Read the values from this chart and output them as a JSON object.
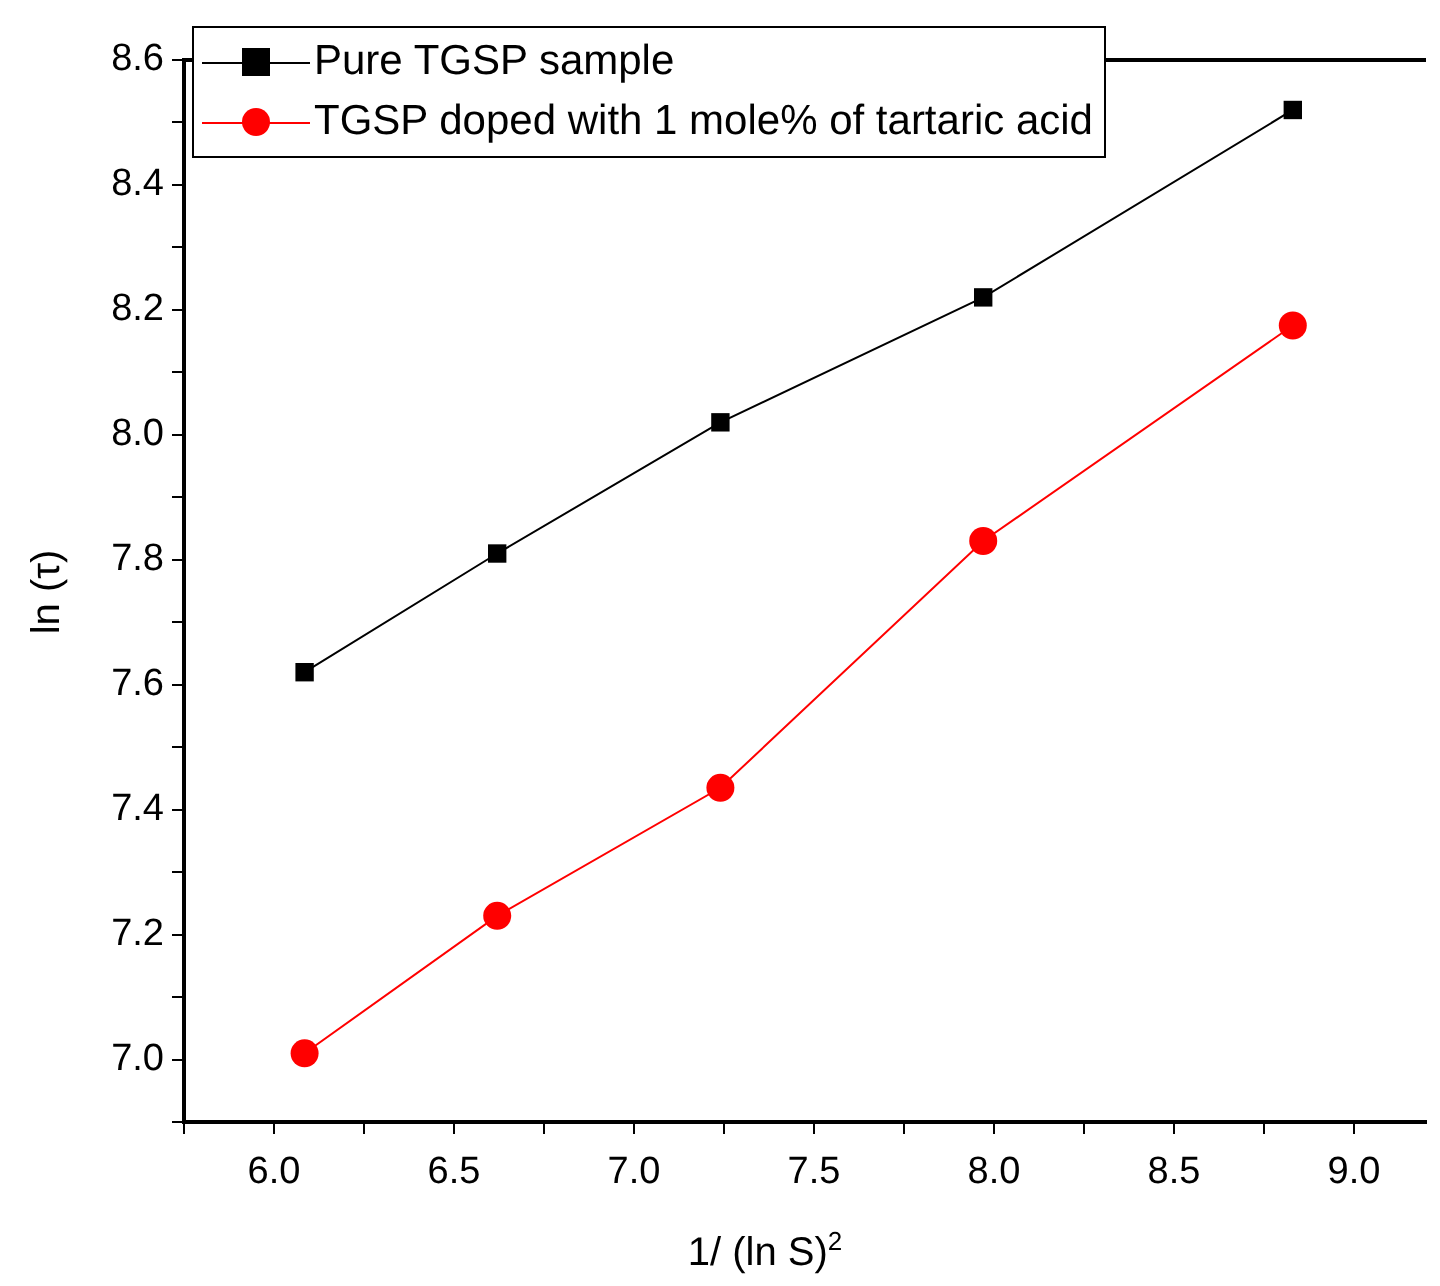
{
  "chart_data": {
    "type": "line",
    "xlabel": "1/ (ln S)$^{2}$",
    "ylabel": "ln (τ)",
    "xlim": [
      5.75,
      9.2
    ],
    "xticks": [
      {
        "value": 5.75,
        "label": null
      },
      {
        "value": 6,
        "label": "6.0"
      },
      {
        "value": 6.25,
        "label": null
      },
      {
        "value": 6.5,
        "label": "6.5"
      },
      {
        "value": 6.75,
        "label": null
      },
      {
        "value": 7,
        "label": "7.0"
      },
      {
        "value": 7.25,
        "label": null
      },
      {
        "value": 7.5,
        "label": "7.5"
      },
      {
        "value": 7.75,
        "label": null
      },
      {
        "value": 8,
        "label": "8.0"
      },
      {
        "value": 8.25,
        "label": null
      },
      {
        "value": 8.5,
        "label": "8.5"
      },
      {
        "value": 8.75,
        "label": null
      },
      {
        "value": 9,
        "label": "9.0"
      }
    ],
    "ylim": [
      6.9,
      8.6
    ],
    "yticks": [
      {
        "value": 6.9,
        "label": null
      },
      {
        "value": 7,
        "label": "7.0"
      },
      {
        "value": 7.1,
        "label": null
      },
      {
        "value": 7.2,
        "label": "7.2"
      },
      {
        "value": 7.3,
        "label": null
      },
      {
        "value": 7.4,
        "label": "7.4"
      },
      {
        "value": 7.5,
        "label": null
      },
      {
        "value": 7.6,
        "label": "7.6"
      },
      {
        "value": 7.7,
        "label": null
      },
      {
        "value": 7.8,
        "label": "7.8"
      },
      {
        "value": 7.9,
        "label": null
      },
      {
        "value": 8,
        "label": "8.0"
      },
      {
        "value": 8.1,
        "label": null
      },
      {
        "value": 8.2,
        "label": "8.2"
      },
      {
        "value": 8.3,
        "label": null
      },
      {
        "value": 8.4,
        "label": "8.4"
      },
      {
        "value": 8.5,
        "label": null
      },
      {
        "value": 8.6,
        "label": "8.6"
      }
    ],
    "x": [
      6.085,
      6.62,
      7.24,
      7.97,
      8.83
    ],
    "series": [
      {
        "name": "Pure TGSP sample",
        "color": "#000000",
        "marker": "square",
        "values": [
          7.62,
          7.81,
          8.02,
          8.22,
          8.52
        ]
      },
      {
        "name": "TGSP doped with 1 mole% of tartaric acid",
        "color": "#ff0000",
        "marker": "circle",
        "values": [
          7.01,
          7.23,
          7.435,
          7.83,
          8.175
        ]
      }
    ],
    "grid": false,
    "legend": "top left"
  }
}
